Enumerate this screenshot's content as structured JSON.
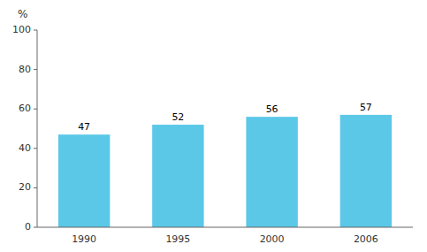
{
  "chart_data": {
    "type": "bar",
    "y_label": "%",
    "categories": [
      "1990",
      "1995",
      "2000",
      "2006"
    ],
    "values": [
      47,
      52,
      56,
      57
    ],
    "color": "#5BC8E8",
    "ylim": [
      0,
      100
    ],
    "yticks": [
      0,
      20,
      40,
      60,
      80,
      100
    ],
    "grid": false,
    "data_labels": true
  }
}
